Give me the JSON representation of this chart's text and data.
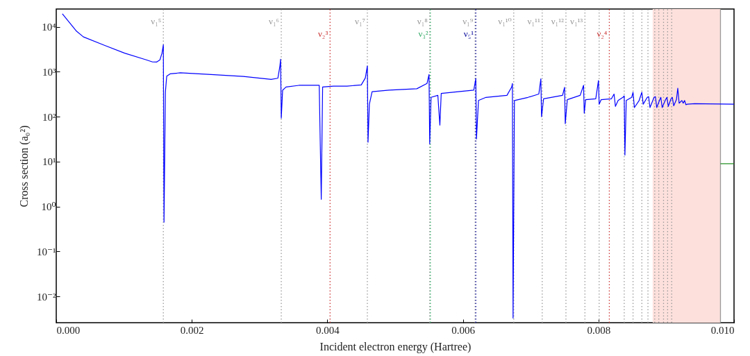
{
  "chart_data": {
    "type": "line",
    "xlabel": "Incident electron energy (Hartree)",
    "ylabel": "Cross section (a₀²)",
    "log": "y",
    "xlim": [
      0,
      0.01
    ],
    "xticks": [
      {
        "value": 0,
        "label": "0.000"
      },
      {
        "value": 0.002,
        "label": "0.002"
      },
      {
        "value": 0.004,
        "label": "0.004"
      },
      {
        "value": 0.006,
        "label": "0.006"
      },
      {
        "value": 0.008,
        "label": "0.008"
      },
      {
        "value": 0.01,
        "label": "0.010"
      }
    ],
    "ylim": [
      0.0026,
      25000
    ],
    "yticks": [
      {
        "value": 0.01,
        "label": "10⁻²"
      },
      {
        "value": 0.1,
        "label": "10⁻¹"
      },
      {
        "value": 1,
        "label": "10⁰"
      },
      {
        "value": 10,
        "label": "10¹"
      },
      {
        "value": 100,
        "label": "10²"
      },
      {
        "value": 1000,
        "label": "10³"
      },
      {
        "value": 10000,
        "label": "10⁴"
      }
    ],
    "series": [
      {
        "color": "#0000ff",
        "x": [
          9e-05,
          0.0003,
          0.0004,
          0.00071,
          0.00101,
          0.00132,
          0.00142,
          0.00148,
          0.00153,
          0.00156,
          0.00158,
          0.00159,
          0.00161,
          0.00163,
          0.00168,
          0.00183,
          0.00224,
          0.00276,
          0.00317,
          0.00327,
          0.0033,
          0.00331,
          0.00332,
          0.00334,
          0.00339,
          0.00358,
          0.00388,
          0.00391,
          0.00393,
          0.00409,
          0.00429,
          0.0045,
          0.00456,
          0.00459,
          0.0046,
          0.00462,
          0.00466,
          0.00491,
          0.00532,
          0.00547,
          0.0055,
          0.00551,
          0.00553,
          0.00563,
          0.00566,
          0.00568,
          0.00593,
          0.00616,
          0.00619,
          0.0062,
          0.00623,
          0.00634,
          0.00665,
          0.00672,
          0.00673,
          0.00674,
          0.00676,
          0.00696,
          0.00712,
          0.00715,
          0.00716,
          0.00719,
          0.00747,
          0.0075,
          0.00751,
          0.00754,
          0.00773,
          0.00778,
          0.00779,
          0.00781,
          0.00796,
          0.008,
          0.00801,
          0.00804,
          0.00819,
          0.00823,
          0.00825,
          0.00829,
          0.00836,
          0.00838,
          0.00839,
          0.00841,
          0.00849,
          0.00851,
          0.00853,
          0.0086,
          0.00864,
          0.00866,
          0.00872,
          0.00874,
          0.00876,
          0.00882,
          0.00884,
          0.00886,
          0.0089,
          0.00892,
          0.00894,
          0.00899,
          0.00901,
          0.00903,
          0.00907,
          0.00909,
          0.00911,
          0.00915,
          0.00917,
          0.00919,
          0.00923,
          0.00925,
          0.00927,
          0.00929,
          0.00931,
          0.00942,
          0.01
        ],
        "values": [
          19500,
          8000,
          6000,
          3900,
          2600,
          1860,
          1660,
          1650,
          1850,
          2600,
          4000,
          0.45,
          350,
          800,
          900,
          950,
          880,
          790,
          680,
          720,
          1350,
          1900,
          93,
          390,
          460,
          500,
          500,
          1.45,
          460,
          480,
          480,
          510,
          730,
          1350,
          27,
          190,
          360,
          390,
          420,
          550,
          870,
          25,
          270,
          300,
          65,
          330,
          360,
          390,
          700,
          32,
          230,
          270,
          300,
          460,
          550,
          0.0033,
          230,
          270,
          320,
          700,
          100,
          250,
          300,
          450,
          70,
          240,
          300,
          500,
          120,
          240,
          250,
          640,
          190,
          240,
          250,
          320,
          170,
          230,
          270,
          290,
          14,
          230,
          270,
          350,
          160,
          230,
          350,
          190,
          270,
          280,
          160,
          270,
          280,
          160,
          230,
          270,
          160,
          240,
          270,
          170,
          250,
          270,
          175,
          240,
          430,
          200,
          230,
          200,
          230,
          185,
          190,
          195,
          190
        ]
      },
      {
        "color": "#1a8a1a",
        "x": [
          0.0098,
          0.01
        ],
        "values": [
          9,
          9
        ]
      }
    ],
    "bands": [
      {
        "axis": "x",
        "from": 0.0088,
        "to": 0.0098,
        "color": "#fde0dc"
      }
    ],
    "ref_lines": [
      {
        "axis": "x",
        "value": 0.00158,
        "label": "ν₁⁵",
        "color": "#999999",
        "line_style": "dotted"
      },
      {
        "axis": "x",
        "value": 0.00332,
        "label": "ν₁⁶",
        "color": "#999999",
        "line_style": "dotted"
      },
      {
        "axis": "x",
        "value": 0.00404,
        "label": "ν₂³",
        "color": "#cc3333",
        "line_style": "dotted"
      },
      {
        "axis": "x",
        "value": 0.00459,
        "label": "ν₁⁷",
        "color": "#999999",
        "line_style": "dotted"
      },
      {
        "axis": "x",
        "value": 0.00551,
        "label": "ν₁⁸",
        "color": "#999999",
        "line_style": "dotted"
      },
      {
        "axis": "x",
        "value": 0.00552,
        "label": "ν₃²",
        "color": "#33aa66",
        "line_style": "dotted"
      },
      {
        "axis": "x",
        "value": 0.00618,
        "label": "ν₁⁹",
        "color": "#999999",
        "line_style": "dotted"
      },
      {
        "axis": "x",
        "value": 0.00619,
        "label": "ν₅¹",
        "color": "#000099",
        "line_style": "dotted"
      },
      {
        "axis": "x",
        "value": 0.00675,
        "label": "ν₁¹⁰",
        "color": "#999999",
        "line_style": "dotted"
      },
      {
        "axis": "x",
        "value": 0.00717,
        "label": "ν₁¹¹",
        "color": "#999999",
        "line_style": "dotted"
      },
      {
        "axis": "x",
        "value": 0.00752,
        "label": "ν₁¹²",
        "color": "#999999",
        "line_style": "dotted"
      },
      {
        "axis": "x",
        "value": 0.0078,
        "label": "ν₁¹³",
        "color": "#999999",
        "line_style": "dotted"
      },
      {
        "axis": "x",
        "value": 0.00801,
        "color": "#999999",
        "line_style": "dotted"
      },
      {
        "axis": "x",
        "value": 0.00816,
        "label": "ν₂⁴",
        "color": "#cc3333",
        "line_style": "dotted"
      },
      {
        "axis": "x",
        "value": 0.00838,
        "color": "#999999",
        "line_style": "dotted"
      },
      {
        "axis": "x",
        "value": 0.00851,
        "color": "#999999",
        "line_style": "dotted"
      },
      {
        "axis": "x",
        "value": 0.00864,
        "color": "#999999",
        "line_style": "dotted"
      },
      {
        "axis": "x",
        "value": 0.00873,
        "color": "#999999",
        "line_style": "dotted"
      },
      {
        "axis": "x",
        "value": 0.00883,
        "color": "#999999",
        "line_style": "dotted"
      },
      {
        "axis": "x",
        "value": 0.00889,
        "color": "#999999",
        "line_style": "dotted"
      },
      {
        "axis": "x",
        "value": 0.00896,
        "color": "#999999",
        "line_style": "dotted"
      },
      {
        "axis": "x",
        "value": 0.00902,
        "color": "#999999",
        "line_style": "dotted"
      },
      {
        "axis": "x",
        "value": 0.00908,
        "color": "#999999",
        "line_style": "dotted"
      },
      {
        "axis": "x",
        "value": 0.0098,
        "color": "#999999",
        "line_style": "solid"
      }
    ]
  }
}
